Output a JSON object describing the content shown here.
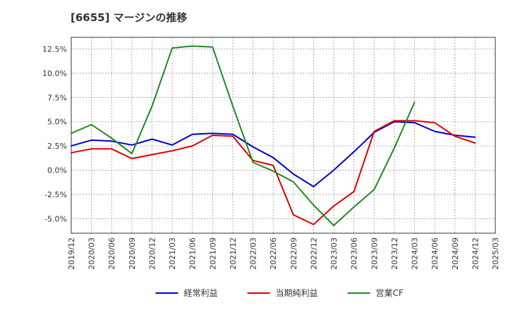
{
  "title": "[6655]  マージンの推移",
  "chart_data": {
    "type": "line",
    "title": "[6655]  マージンの推移",
    "xlabel": "",
    "ylabel": "",
    "x": [
      "2019/12",
      "2020/03",
      "2020/06",
      "2020/09",
      "2020/12",
      "2021/03",
      "2021/06",
      "2021/09",
      "2021/12",
      "2022/03",
      "2022/06",
      "2022/09",
      "2022/12",
      "2023/03",
      "2023/06",
      "2023/09",
      "2023/12",
      "2024/03",
      "2024/06",
      "2024/09",
      "2024/12",
      "2025/03"
    ],
    "y_ticks": [
      "12.5%",
      "10.0%",
      "7.5%",
      "5.0%",
      "2.5%",
      "0.0%",
      "-2.5%",
      "-5.0%"
    ],
    "y_tick_values": [
      12.5,
      10.0,
      7.5,
      5.0,
      2.5,
      0.0,
      -2.5,
      -5.0
    ],
    "ylim": [
      -6.5,
      13.7
    ],
    "grid": true,
    "legend_position": "bottom",
    "series": [
      {
        "name": "経常利益",
        "color": "#0000cc",
        "values": [
          2.5,
          3.1,
          3.0,
          2.6,
          3.2,
          2.6,
          3.7,
          3.8,
          3.7,
          2.4,
          1.3,
          -0.4,
          -1.7,
          0.0,
          1.9,
          3.9,
          5.0,
          4.9,
          4.0,
          3.6,
          3.4,
          null
        ]
      },
      {
        "name": "当期純利益",
        "color": "#dd0000",
        "values": [
          1.8,
          2.2,
          2.2,
          1.2,
          1.6,
          2.0,
          2.5,
          3.6,
          3.5,
          1.0,
          0.5,
          -4.6,
          -5.6,
          -3.7,
          -2.2,
          4.0,
          5.1,
          5.1,
          4.9,
          3.5,
          2.8,
          null
        ]
      },
      {
        "name": "営業CF",
        "color": "#228822",
        "values": [
          3.8,
          4.7,
          3.3,
          1.7,
          6.6,
          12.6,
          12.8,
          12.7,
          6.6,
          0.8,
          -0.1,
          -1.2,
          -3.6,
          -5.7,
          -3.8,
          -2.0,
          2.3,
          7.0,
          null,
          null,
          null,
          null
        ]
      }
    ]
  }
}
